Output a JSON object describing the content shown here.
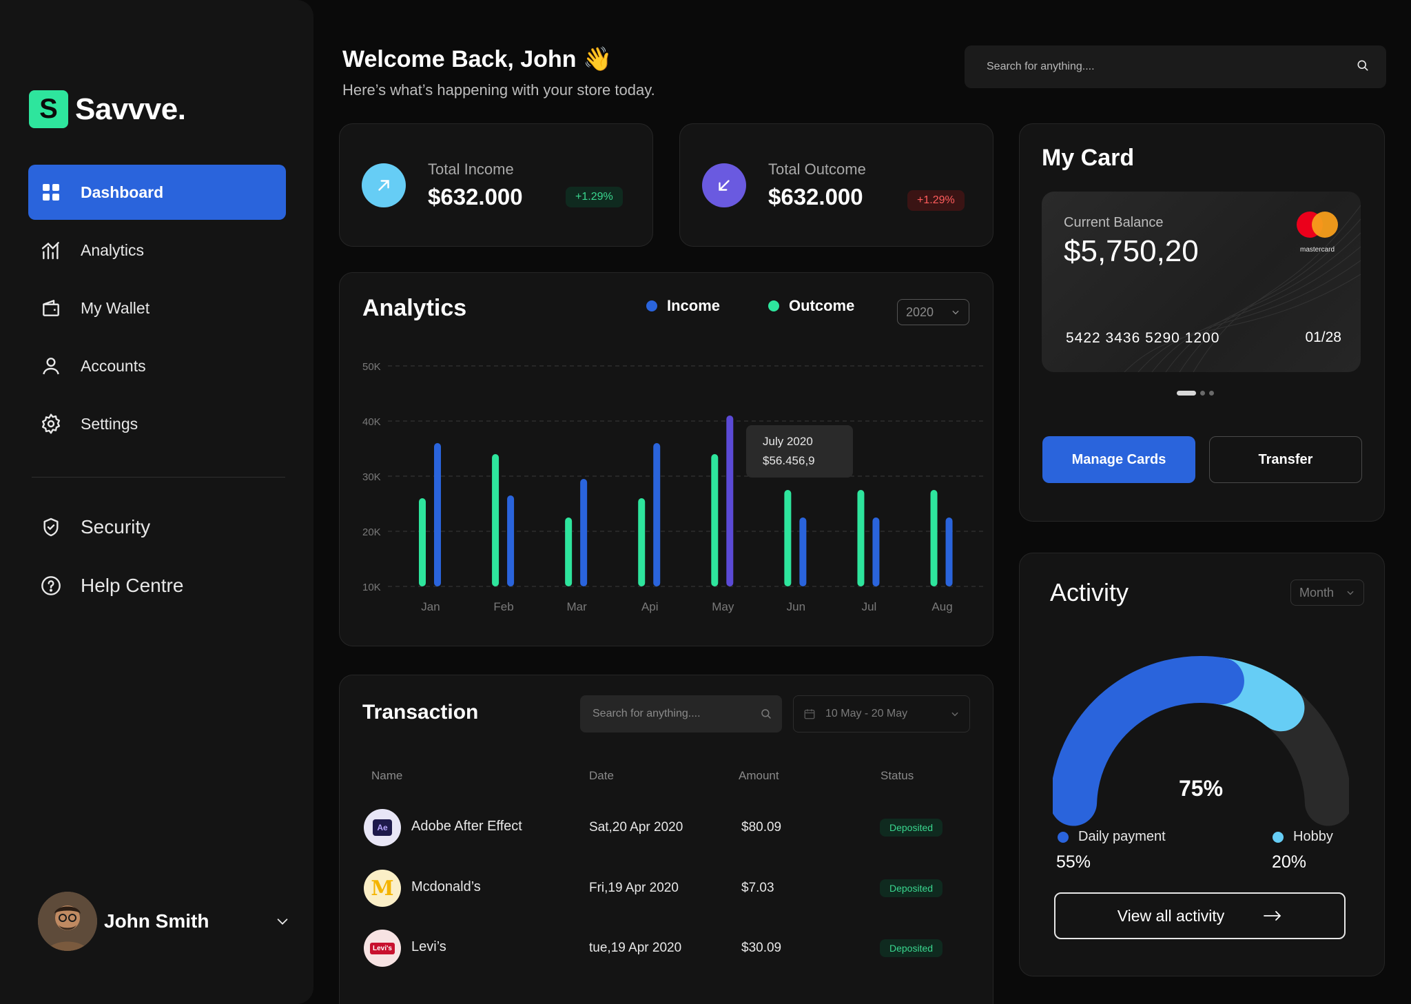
{
  "brand": {
    "mark": "S",
    "name": "Savvve."
  },
  "nav": [
    {
      "label": "Dashboard",
      "icon": "dashboard-grid-icon",
      "active": true
    },
    {
      "label": "Analytics",
      "icon": "analytics-icon"
    },
    {
      "label": "My Wallet",
      "icon": "wallet-icon"
    },
    {
      "label": "Accounts",
      "icon": "user-icon"
    },
    {
      "label": "Settings",
      "icon": "gear-icon"
    }
  ],
  "nav_secondary": [
    {
      "label": "Security",
      "icon": "shield-icon"
    },
    {
      "label": "Help Centre",
      "icon": "help-icon"
    }
  ],
  "user": {
    "name": "John Smith"
  },
  "header": {
    "welcome": "Welcome Back, John",
    "wave": "👋",
    "subtitle": "Here’s what’s happening with your store today.",
    "search_placeholder": "Search for anything...."
  },
  "stats": {
    "income": {
      "label": "Total Income",
      "value": "$632.000",
      "change": "+1.29%"
    },
    "outcome": {
      "label": "Total Outcome",
      "value": "$632.000",
      "change": "+1.29%"
    }
  },
  "analytics": {
    "title": "Analytics",
    "legend_income": "Income",
    "legend_outcome": "Outcome",
    "year": "2020",
    "tooltip_title": "July 2020",
    "tooltip_value": "$56.456,9"
  },
  "colors": {
    "income": "#2a64dc",
    "outcome": "#2ee59d",
    "highlight": "#5b4ad6",
    "accent": "#2a64dc"
  },
  "chart_data": {
    "type": "bar",
    "categories": [
      "Jan",
      "Feb",
      "Mar",
      "Api",
      "May",
      "Jun",
      "Jul",
      "Aug"
    ],
    "series": [
      {
        "name": "Outcome",
        "values": [
          26,
          34,
          22.5,
          26,
          34,
          27.5,
          27.5,
          27.5
        ]
      },
      {
        "name": "Income",
        "values": [
          36,
          26.5,
          29.5,
          36,
          41,
          22.5,
          22.5,
          22.5
        ]
      }
    ],
    "y_ticks": [
      "50K",
      "40K",
      "30K",
      "20K",
      "10K"
    ],
    "ylim": [
      10,
      50
    ],
    "grid": true,
    "highlight": {
      "category": "May",
      "series": "Income"
    }
  },
  "transaction": {
    "title": "Transaction",
    "search_placeholder": "Search for anything....",
    "date_range": "10 May - 20 May",
    "columns": [
      "Name",
      "Date",
      "Amount",
      "Status"
    ],
    "rows": [
      {
        "logo": "Ae",
        "name": "Adobe After Effect",
        "date": "Sat,20 Apr 2020",
        "amount": "$80.09",
        "status": "Deposited"
      },
      {
        "logo": "M",
        "name": "Mcdonald’s",
        "date": "Fri,19 Apr 2020",
        "amount": "$7.03",
        "status": "Deposited"
      },
      {
        "logo": "Levi's",
        "name": "Levi’s",
        "date": "tue,19 Apr 2020",
        "amount": "$30.09",
        "status": "Deposited"
      }
    ]
  },
  "my_card": {
    "title": "My Card",
    "balance_label": "Current Balance",
    "balance": "$5,750,20",
    "number": "5422 3436 5290 1200",
    "expiry": "01/28",
    "network": "mastercard",
    "manage_label": "Manage Cards",
    "transfer_label": "Transfer"
  },
  "activity": {
    "title": "Activity",
    "period": "Month",
    "percent_label": "75%",
    "daily_label": "Daily payment",
    "daily_value": "55%",
    "hobby_label": "Hobby",
    "hobby_value": "20%",
    "view_all_label": "View all activity",
    "daily_fraction": 0.55,
    "hobby_fraction": 0.2
  }
}
